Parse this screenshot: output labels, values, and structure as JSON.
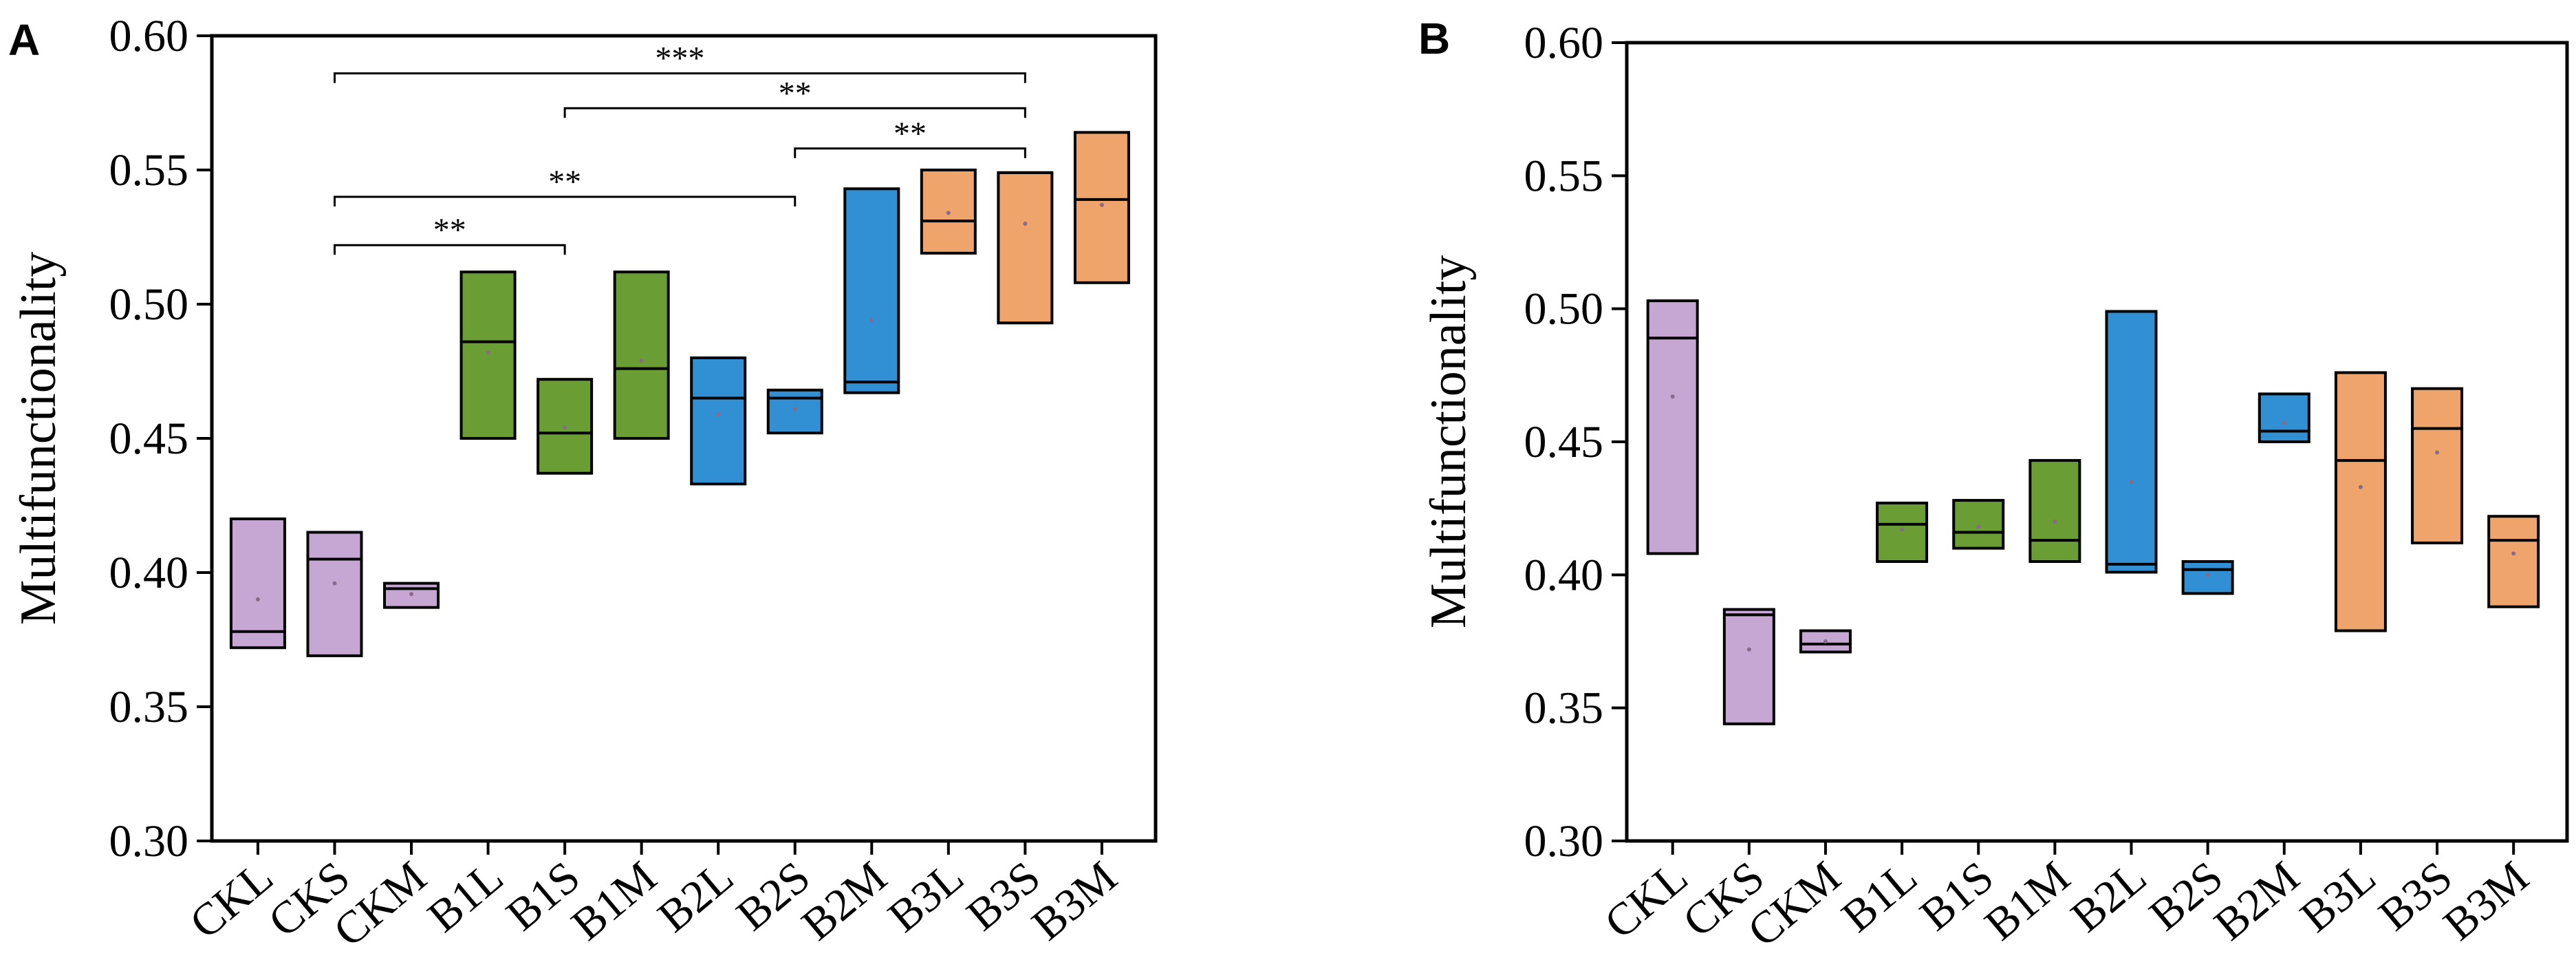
{
  "colors": {
    "control": "#c6a7d4",
    "level1": "#6a9e35",
    "level2": "#3090d3",
    "level3": "#eea46a",
    "edge": "#000000",
    "background": "#ffffff"
  },
  "chart_data": [
    {
      "panel": "A",
      "type": "box",
      "ylabel": "Multifunctionality",
      "xlabel": "",
      "ylim": [
        0.3,
        0.6
      ],
      "yticks": [
        "0.30",
        "0.35",
        "0.40",
        "0.45",
        "0.50",
        "0.55",
        "0.60"
      ],
      "categories": [
        "CKL",
        "CKS",
        "CKM",
        "B1L",
        "B1S",
        "B1M",
        "B2L",
        "B2S",
        "B2M",
        "B3L",
        "B3S",
        "B3M"
      ],
      "groups": [
        "control",
        "control",
        "control",
        "level1",
        "level1",
        "level1",
        "level2",
        "level2",
        "level2",
        "level3",
        "level3",
        "level3"
      ],
      "boxes": [
        {
          "q1": 0.372,
          "median": 0.378,
          "q3": 0.42,
          "mean": 0.39
        },
        {
          "q1": 0.369,
          "median": 0.405,
          "q3": 0.415,
          "mean": 0.396
        },
        {
          "q1": 0.387,
          "median": 0.394,
          "q3": 0.396,
          "mean": 0.392
        },
        {
          "q1": 0.45,
          "median": 0.486,
          "q3": 0.512,
          "mean": 0.482
        },
        {
          "q1": 0.437,
          "median": 0.452,
          "q3": 0.472,
          "mean": 0.454
        },
        {
          "q1": 0.45,
          "median": 0.476,
          "q3": 0.512,
          "mean": 0.479
        },
        {
          "q1": 0.433,
          "median": 0.465,
          "q3": 0.48,
          "mean": 0.459
        },
        {
          "q1": 0.452,
          "median": 0.465,
          "q3": 0.468,
          "mean": 0.461
        },
        {
          "q1": 0.467,
          "median": 0.471,
          "q3": 0.543,
          "mean": 0.494
        },
        {
          "q1": 0.519,
          "median": 0.531,
          "q3": 0.55,
          "mean": 0.534
        },
        {
          "q1": 0.493,
          "median": 0.549,
          "q3": 0.549,
          "mean": 0.53
        },
        {
          "q1": 0.508,
          "median": 0.539,
          "q3": 0.564,
          "mean": 0.537
        }
      ],
      "significance": [
        {
          "from": "CKS",
          "to": "B1S",
          "y": 0.522,
          "label": "**"
        },
        {
          "from": "CKS",
          "to": "B2S",
          "y": 0.54,
          "label": "**"
        },
        {
          "from": "B2S",
          "to": "B3S",
          "y": 0.558,
          "label": "**"
        },
        {
          "from": "B1S",
          "to": "B3S",
          "y": 0.573,
          "label": "**"
        },
        {
          "from": "CKS",
          "to": "B3S",
          "y": 0.586,
          "label": "***"
        }
      ]
    },
    {
      "panel": "B",
      "type": "box",
      "ylabel": "Multifunctionality",
      "xlabel": "",
      "ylim": [
        0.3,
        0.6
      ],
      "yticks": [
        "0.30",
        "0.35",
        "0.40",
        "0.45",
        "0.50",
        "0.55",
        "0.60"
      ],
      "categories": [
        "CKL",
        "CKS",
        "CKM",
        "B1L",
        "B1S",
        "B1M",
        "B2L",
        "B2S",
        "B2M",
        "B3L",
        "B3S",
        "B3M"
      ],
      "groups": [
        "control",
        "control",
        "control",
        "level1",
        "level1",
        "level1",
        "level2",
        "level2",
        "level2",
        "level3",
        "level3",
        "level3"
      ],
      "boxes": [
        {
          "q1": 0.408,
          "median": 0.489,
          "q3": 0.503,
          "mean": 0.467
        },
        {
          "q1": 0.344,
          "median": 0.385,
          "q3": 0.387,
          "mean": 0.372
        },
        {
          "q1": 0.371,
          "median": 0.374,
          "q3": 0.379,
          "mean": 0.375
        },
        {
          "q1": 0.405,
          "median": 0.419,
          "q3": 0.427,
          "mean": 0.417
        },
        {
          "q1": 0.41,
          "median": 0.416,
          "q3": 0.428,
          "mean": 0.418
        },
        {
          "q1": 0.405,
          "median": 0.413,
          "q3": 0.443,
          "mean": 0.42
        },
        {
          "q1": 0.401,
          "median": 0.404,
          "q3": 0.499,
          "mean": 0.435
        },
        {
          "q1": 0.393,
          "median": 0.402,
          "q3": 0.405,
          "mean": 0.4
        },
        {
          "q1": 0.45,
          "median": 0.454,
          "q3": 0.468,
          "mean": 0.457
        },
        {
          "q1": 0.379,
          "median": 0.443,
          "q3": 0.476,
          "mean": 0.433
        },
        {
          "q1": 0.412,
          "median": 0.455,
          "q3": 0.47,
          "mean": 0.446
        },
        {
          "q1": 0.388,
          "median": 0.413,
          "q3": 0.422,
          "mean": 0.408
        }
      ],
      "significance": []
    }
  ]
}
